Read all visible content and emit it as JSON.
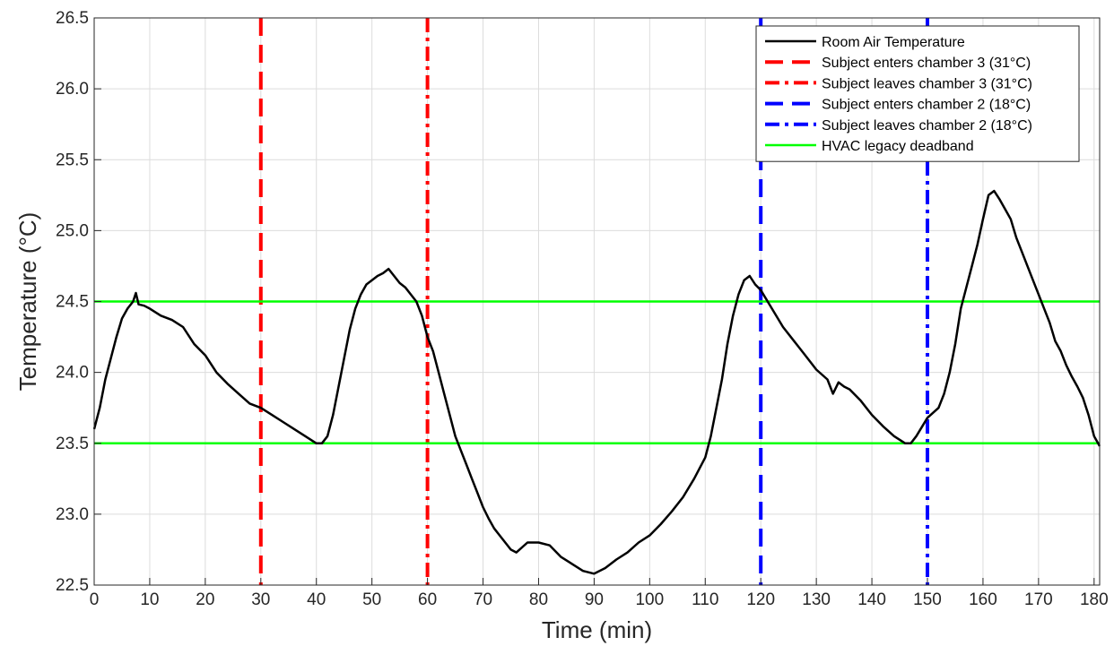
{
  "chart_data": {
    "type": "line",
    "title": "",
    "xlabel": "Time (min)",
    "ylabel": "Temperature (°C)",
    "xlim": [
      0,
      181
    ],
    "ylim": [
      22.5,
      26.5
    ],
    "xticks": [
      0,
      10,
      20,
      30,
      40,
      50,
      60,
      70,
      80,
      90,
      100,
      110,
      120,
      130,
      140,
      150,
      160,
      170,
      180
    ],
    "yticks": [
      "22.5",
      "23.0",
      "23.5",
      "24.0",
      "24.5",
      "25.0",
      "25.5",
      "26.0",
      "26.5"
    ],
    "grid": true,
    "legend_position": "top-right",
    "series": [
      {
        "name": "Room Air Temperature",
        "kind": "line",
        "style": "solid",
        "color": "#000000",
        "x": [
          0,
          1,
          2,
          3,
          4,
          5,
          6,
          7,
          7.5,
          8,
          9,
          10,
          12,
          14,
          16,
          18,
          20,
          22,
          24,
          26,
          28,
          30,
          32,
          34,
          36,
          38,
          40,
          41,
          42,
          43,
          44,
          45,
          46,
          47,
          48,
          49,
          50,
          51,
          52,
          53,
          54,
          55,
          56,
          57,
          58,
          59,
          60,
          61,
          62,
          63,
          64,
          65,
          66,
          67,
          68,
          69,
          70,
          71,
          72,
          73,
          74,
          75,
          76,
          78,
          80,
          82,
          84,
          86,
          88,
          90,
          92,
          94,
          96,
          98,
          100,
          102,
          104,
          106,
          108,
          110,
          111,
          112,
          113,
          114,
          115,
          116,
          117,
          118,
          119,
          120,
          122,
          124,
          126,
          128,
          130,
          132,
          133,
          134,
          135,
          136,
          138,
          140,
          142,
          144,
          146,
          147,
          148,
          150,
          152,
          153,
          154,
          155,
          156,
          157,
          158,
          159,
          160,
          161,
          162,
          163,
          164,
          165,
          166,
          167,
          168,
          169,
          170,
          171,
          172,
          173,
          174,
          175,
          176,
          177,
          178,
          179,
          180,
          181
        ],
        "y": [
          23.6,
          23.75,
          23.95,
          24.1,
          24.25,
          24.38,
          24.45,
          24.5,
          24.56,
          24.48,
          24.47,
          24.45,
          24.4,
          24.37,
          24.32,
          24.2,
          24.12,
          24.0,
          23.92,
          23.85,
          23.78,
          23.75,
          23.7,
          23.65,
          23.6,
          23.55,
          23.5,
          23.5,
          23.55,
          23.7,
          23.9,
          24.1,
          24.3,
          24.45,
          24.55,
          24.62,
          24.65,
          24.68,
          24.7,
          24.73,
          24.68,
          24.63,
          24.6,
          24.55,
          24.5,
          24.4,
          24.25,
          24.15,
          24.0,
          23.85,
          23.7,
          23.55,
          23.45,
          23.35,
          23.25,
          23.15,
          23.05,
          22.97,
          22.9,
          22.85,
          22.8,
          22.75,
          22.73,
          22.8,
          22.8,
          22.78,
          22.7,
          22.65,
          22.6,
          22.58,
          22.62,
          22.68,
          22.73,
          22.8,
          22.85,
          22.93,
          23.02,
          23.12,
          23.25,
          23.4,
          23.55,
          23.75,
          23.95,
          24.2,
          24.4,
          24.55,
          24.65,
          24.68,
          24.62,
          24.58,
          24.45,
          24.32,
          24.22,
          24.12,
          24.02,
          23.95,
          23.85,
          23.93,
          23.9,
          23.88,
          23.8,
          23.7,
          23.62,
          23.55,
          23.5,
          23.5,
          23.55,
          23.68,
          23.75,
          23.85,
          24.0,
          24.2,
          24.45,
          24.6,
          24.75,
          24.9,
          25.08,
          25.25,
          25.28,
          25.22,
          25.15,
          25.08,
          24.95,
          24.85,
          24.75,
          24.65,
          24.55,
          24.45,
          24.35,
          24.22,
          24.15,
          24.05,
          23.97,
          23.9,
          23.82,
          23.7,
          23.55,
          23.48
        ]
      },
      {
        "name": "Subject enters chamber 3 (31°C)",
        "kind": "vline",
        "x": 30,
        "style": "dashed",
        "color": "#ff0000"
      },
      {
        "name": "Subject leaves chamber 3 (31°C)",
        "kind": "vline",
        "x": 60,
        "style": "dashdot",
        "color": "#ff0000"
      },
      {
        "name": "Subject enters chamber 2 (18°C)",
        "kind": "vline",
        "x": 120,
        "style": "dashed",
        "color": "#0000ff"
      },
      {
        "name": "Subject leaves chamber 2 (18°C)",
        "kind": "vline",
        "x": 150,
        "style": "dashdot",
        "color": "#0000ff"
      },
      {
        "name": "HVAC legacy deadband",
        "kind": "hlines",
        "y": [
          23.5,
          24.5
        ],
        "style": "solid",
        "color": "#00ff00"
      }
    ]
  }
}
